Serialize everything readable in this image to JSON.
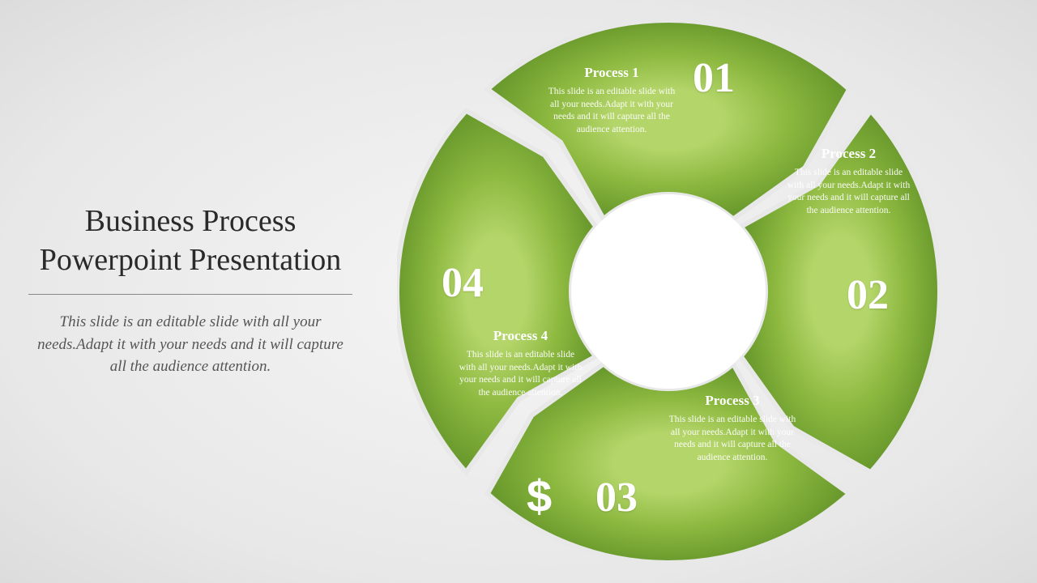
{
  "title": "Business Process Powerpoint Presentation",
  "description": "This slide is an editable slide with all your needs.Adapt it with your needs and it will capture all the audience attention.",
  "diagram": {
    "type": "circular-arrow-process",
    "segments": 4,
    "colors": {
      "segment_light": "#a4c855",
      "segment_dark": "#6a9a2d",
      "gap": "#e8e8e8",
      "center": "#ffffff",
      "text": "#ffffff"
    },
    "outer_radius": 335,
    "inner_radius": 120,
    "gap_width": 10,
    "items": [
      {
        "num": "01",
        "title": "Process 1",
        "desc": "This slide is an editable slide with all your needs.Adapt it with your needs and it will capture all the audience attention.",
        "icon": "lightbulb"
      },
      {
        "num": "02",
        "title": "Process 2",
        "desc": "This slide is an editable slide with all your needs.Adapt it with your needs and it will capture all the audience attention.",
        "icon": "handshake"
      },
      {
        "num": "03",
        "title": "Process 3",
        "desc": "This slide is an editable slide with all your needs.Adapt it with your needs and it will capture all the audience attention.",
        "icon": "dollar"
      },
      {
        "num": "04",
        "title": "Process 4",
        "desc": "This slide is an editable slide with all your needs.Adapt it with your needs and it will capture all the audience attention.",
        "icon": "people"
      }
    ]
  }
}
